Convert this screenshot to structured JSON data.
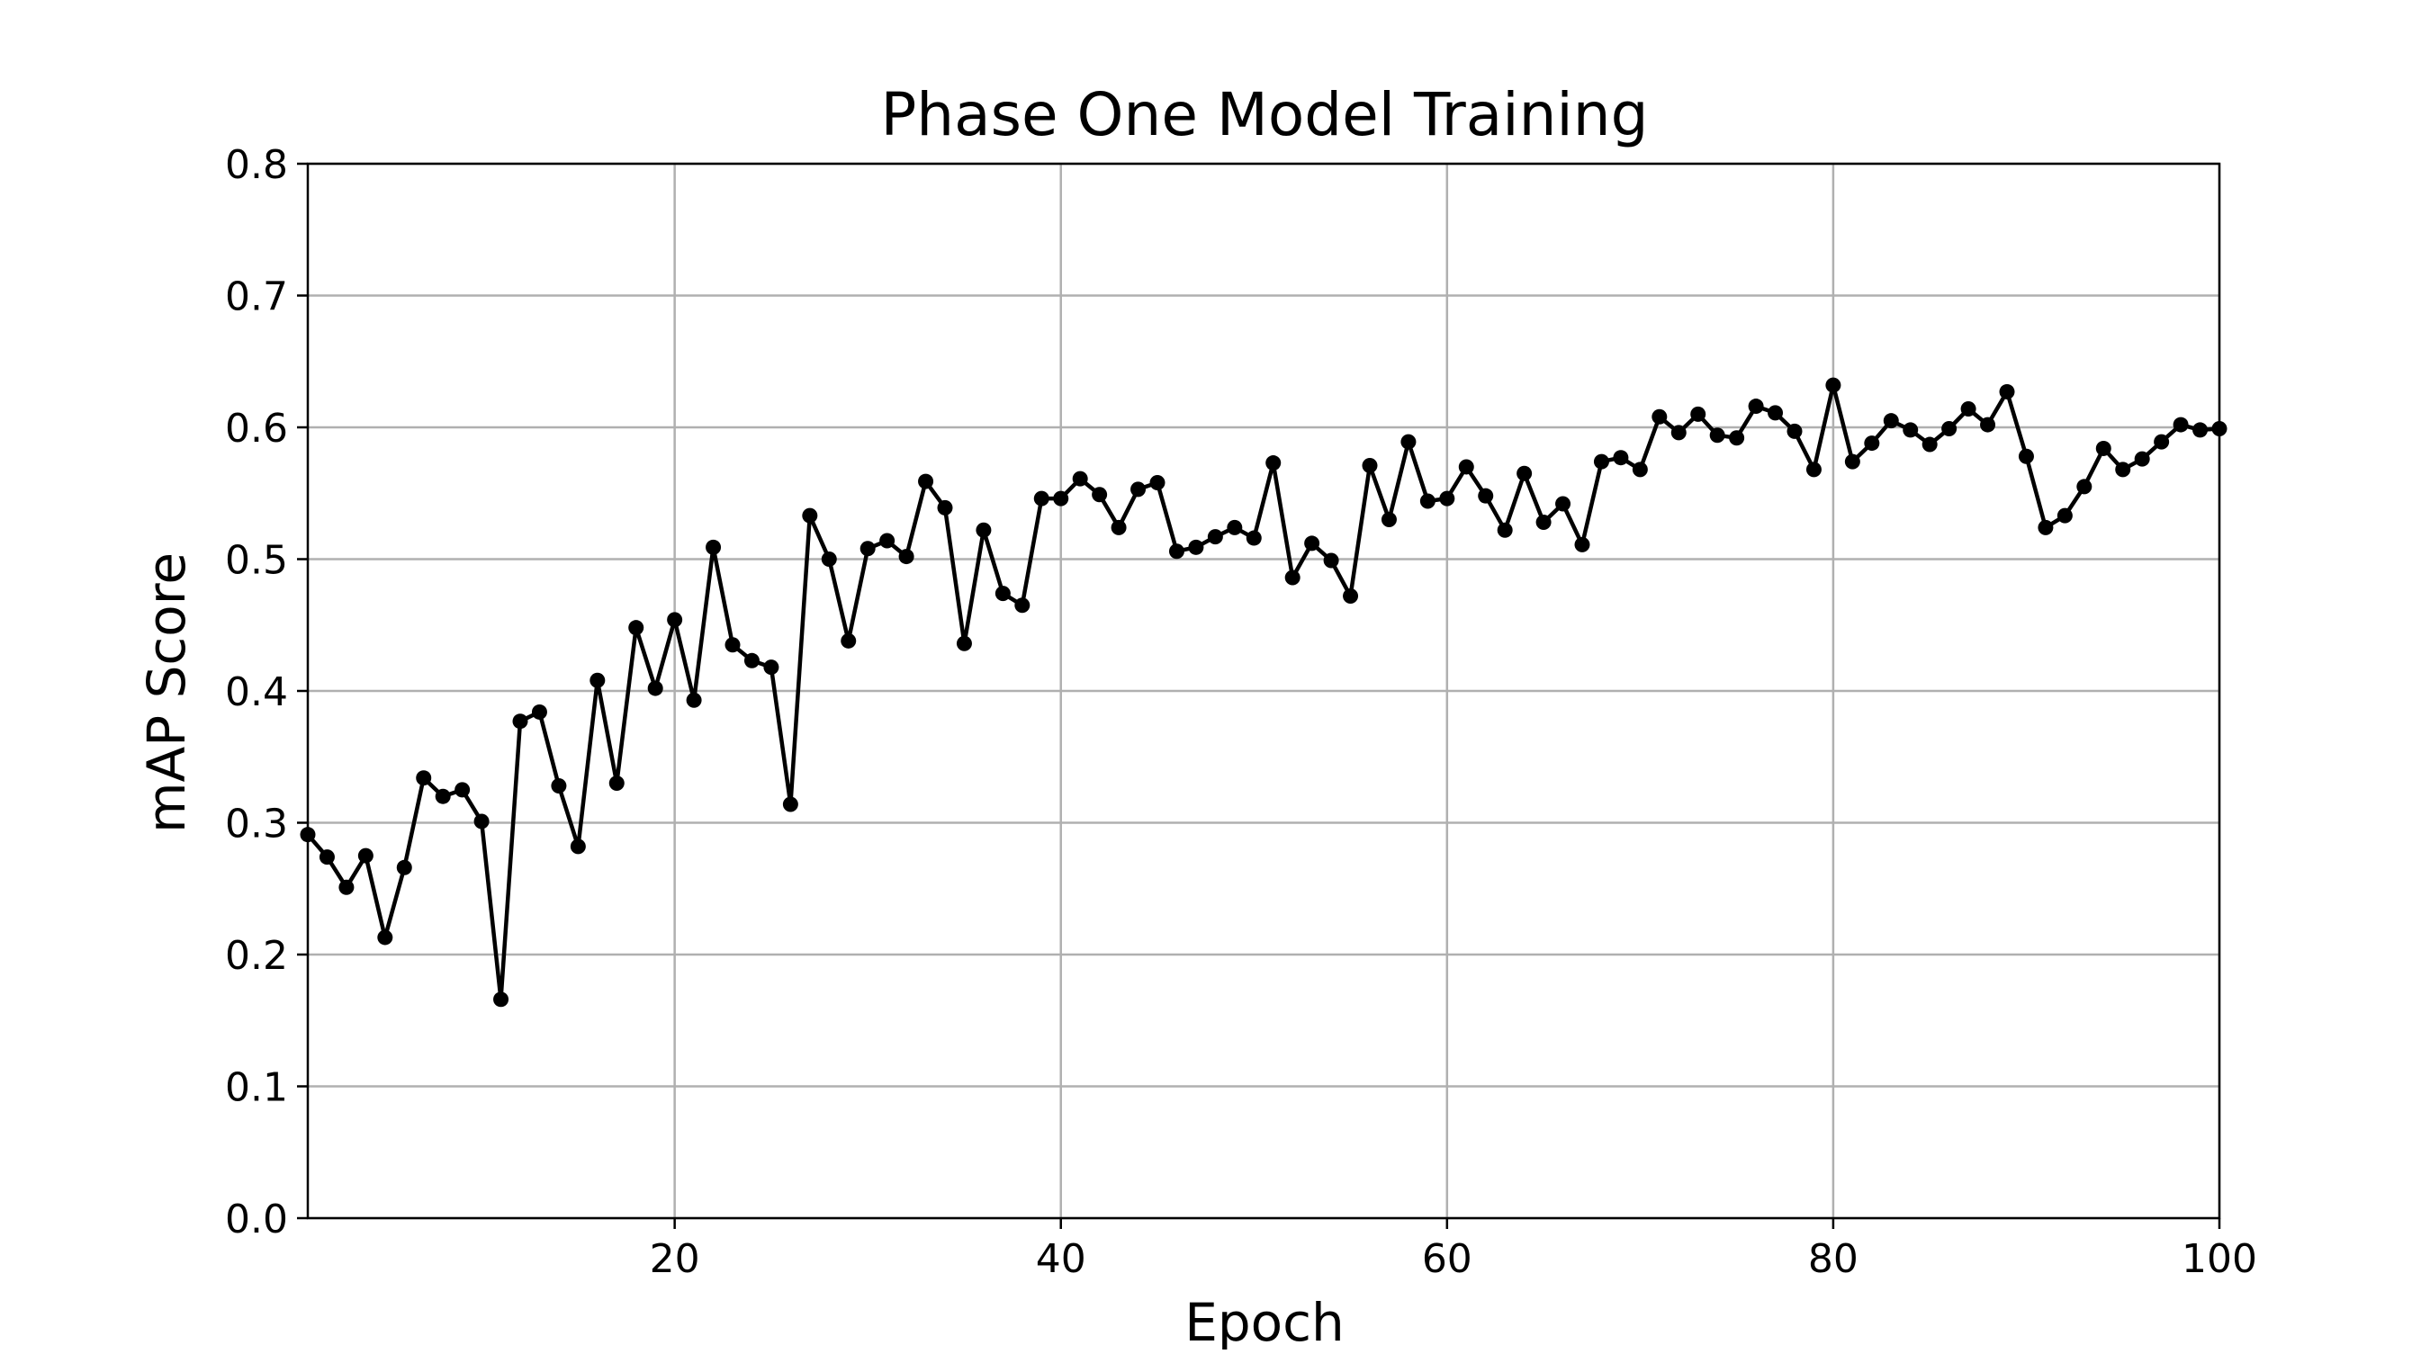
{
  "chart_data": {
    "type": "line",
    "title": "Phase One Model Training",
    "xlabel": "Epoch",
    "ylabel": "mAP Score",
    "xlim": [
      1,
      100
    ],
    "ylim": [
      0.0,
      0.8
    ],
    "xticks": [
      20,
      40,
      60,
      80,
      100
    ],
    "xtick_labels": [
      "20",
      "40",
      "60",
      "80",
      "100"
    ],
    "yticks": [
      0.0,
      0.1,
      0.2,
      0.3,
      0.4,
      0.5,
      0.6,
      0.7,
      0.8
    ],
    "ytick_labels": [
      "0.0",
      "0.1",
      "0.2",
      "0.3",
      "0.4",
      "0.5",
      "0.6",
      "0.7",
      "0.8"
    ],
    "grid": true,
    "line_color": "#000000",
    "grid_color": "#b0b0b0",
    "series": [
      {
        "x": [
          1,
          2,
          3,
          4,
          5,
          6,
          7,
          8,
          9,
          10,
          11,
          12,
          13,
          14,
          15,
          16,
          17,
          18,
          19,
          20,
          21,
          22,
          23,
          24,
          25,
          26,
          27,
          28,
          29,
          30,
          31,
          32,
          33,
          34,
          35,
          36,
          37,
          38,
          39,
          40,
          41,
          42,
          43,
          44,
          45,
          46,
          47,
          48,
          49,
          50,
          51,
          52,
          53,
          54,
          55,
          56,
          57,
          58,
          59,
          60,
          61,
          62,
          63,
          64,
          65,
          66,
          67,
          68,
          69,
          70,
          71,
          72,
          73,
          74,
          75,
          76,
          77,
          78,
          79,
          80,
          81,
          82,
          83,
          84,
          85,
          86,
          87,
          88,
          89,
          90,
          91,
          92,
          93,
          94,
          95,
          96,
          97,
          98,
          99,
          100
        ],
        "values": [
          0.291,
          0.274,
          0.251,
          0.275,
          0.213,
          0.266,
          0.334,
          0.32,
          0.325,
          0.301,
          0.166,
          0.377,
          0.384,
          0.328,
          0.282,
          0.408,
          0.33,
          0.448,
          0.402,
          0.454,
          0.393,
          0.509,
          0.435,
          0.423,
          0.418,
          0.314,
          0.533,
          0.5,
          0.438,
          0.508,
          0.514,
          0.502,
          0.559,
          0.539,
          0.436,
          0.522,
          0.474,
          0.465,
          0.546,
          0.546,
          0.561,
          0.549,
          0.524,
          0.553,
          0.558,
          0.506,
          0.509,
          0.517,
          0.524,
          0.516,
          0.573,
          0.486,
          0.512,
          0.499,
          0.472,
          0.571,
          0.53,
          0.589,
          0.544,
          0.546,
          0.57,
          0.548,
          0.522,
          0.565,
          0.528,
          0.542,
          0.511,
          0.574,
          0.577,
          0.568,
          0.608,
          0.596,
          0.61,
          0.594,
          0.592,
          0.616,
          0.611,
          0.597,
          0.568,
          0.632,
          0.574,
          0.588,
          0.605,
          0.598,
          0.587,
          0.599,
          0.614,
          0.602,
          0.627,
          0.578,
          0.524,
          0.533,
          0.555,
          0.584,
          0.568,
          0.576,
          0.589,
          0.602,
          0.598,
          0.599
        ]
      }
    ]
  }
}
